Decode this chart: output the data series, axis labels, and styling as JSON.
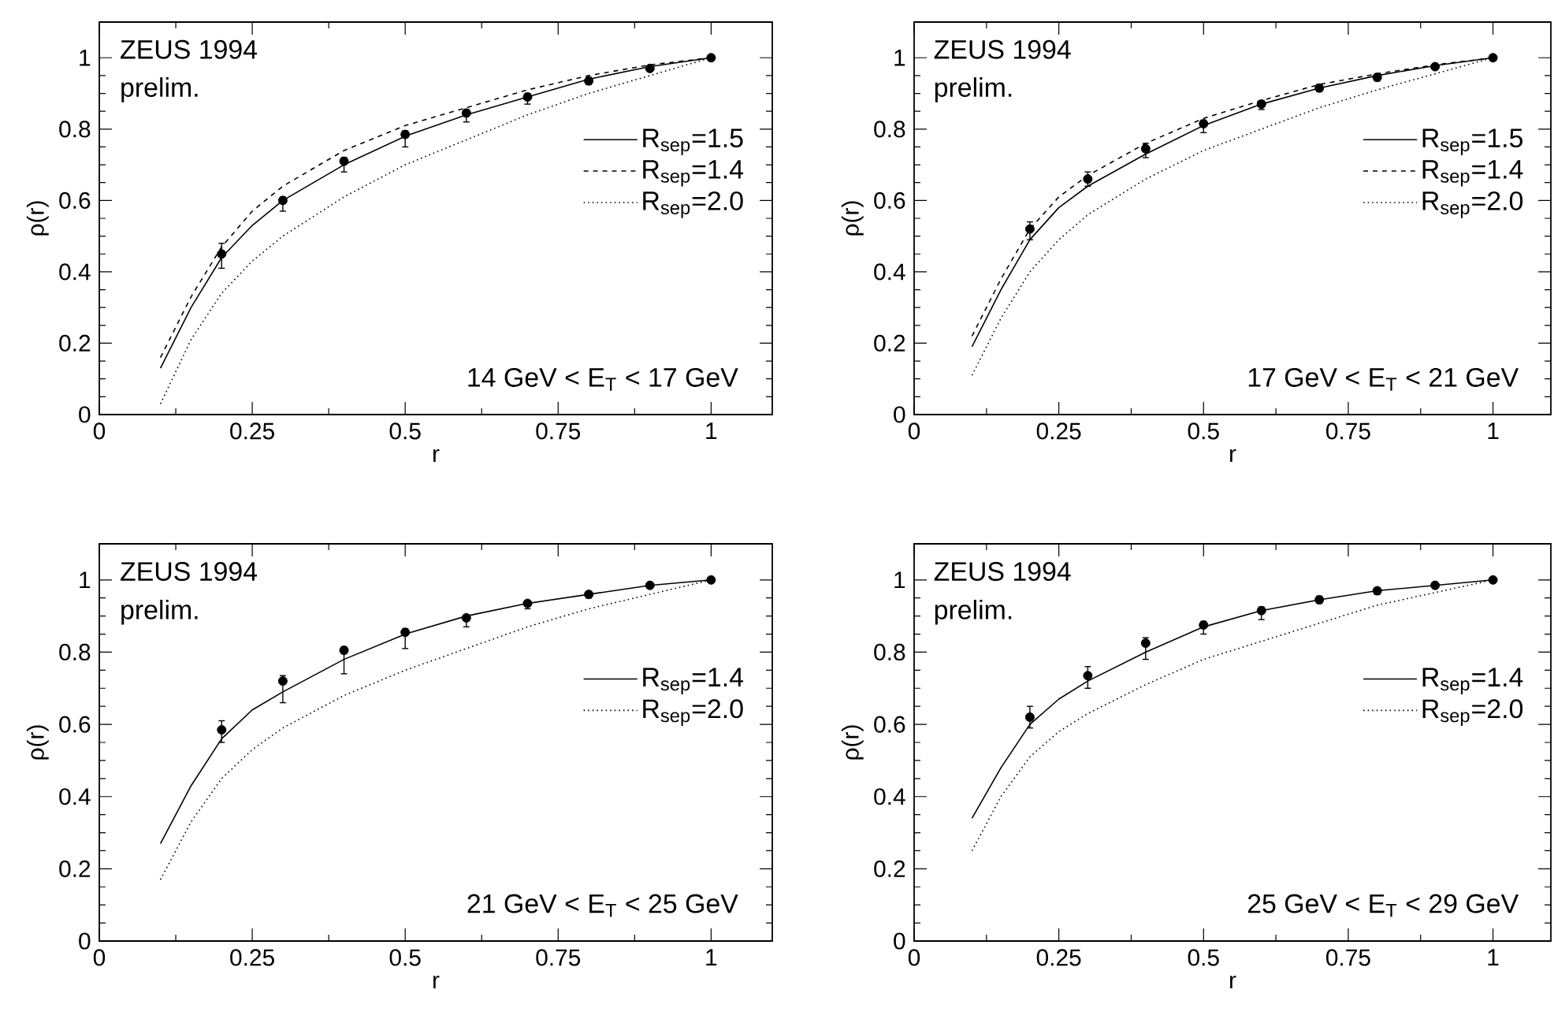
{
  "chart_data": [
    {
      "type": "line",
      "xlabel": "r",
      "ylabel": "ρ(r)",
      "xlim": [
        0,
        1.1
      ],
      "ylim": [
        0,
        1.1
      ],
      "xticks": [
        0,
        0.25,
        0.5,
        0.75,
        1
      ],
      "yticks": [
        0,
        0.2,
        0.4,
        0.6,
        0.8,
        1
      ],
      "legend": "right",
      "grid": false,
      "annotations": [
        "ZEUS 1994",
        "prelim.",
        "14 GeV < E$_{T}$ < 17 GeV"
      ],
      "series": [
        {
          "name": "R$_{sep}$=1.5",
          "color": "#000000",
          "line_style": "solid",
          "marker": "none",
          "x": [
            0.1,
            0.15,
            0.2,
            0.25,
            0.3,
            0.4,
            0.5,
            0.6,
            0.7,
            0.8,
            0.9,
            1
          ],
          "values": [
            0.13,
            0.3,
            0.44,
            0.53,
            0.6,
            0.7,
            0.78,
            0.84,
            0.89,
            0.94,
            0.975,
            1
          ]
        },
        {
          "name": "R$_{sep}$=1.4",
          "color": "#000000",
          "line_style": "dashed",
          "marker": "none",
          "x": [
            0.1,
            0.15,
            0.2,
            0.25,
            0.3,
            0.4,
            0.5,
            0.6,
            0.7,
            0.8,
            0.9,
            1
          ],
          "values": [
            0.16,
            0.33,
            0.47,
            0.57,
            0.64,
            0.74,
            0.81,
            0.86,
            0.91,
            0.95,
            0.98,
            1
          ]
        },
        {
          "name": "R$_{sep}$=2.0",
          "color": "#000000",
          "line_style": "dotted",
          "marker": "none",
          "x": [
            0.1,
            0.15,
            0.2,
            0.25,
            0.3,
            0.4,
            0.5,
            0.6,
            0.7,
            0.8,
            0.9,
            1
          ],
          "values": [
            0.03,
            0.21,
            0.34,
            0.43,
            0.5,
            0.61,
            0.7,
            0.77,
            0.84,
            0.9,
            0.95,
            1
          ]
        },
        {
          "type": "scatter",
          "color": "#000000",
          "marker": "circle",
          "x": [
            0.2,
            0.3,
            0.4,
            0.5,
            0.6,
            0.7,
            0.8,
            0.9,
            1
          ],
          "values": [
            0.45,
            0.6,
            0.71,
            0.785,
            0.845,
            0.89,
            0.935,
            0.97,
            1
          ],
          "errors": [
            [
              0.41,
              0.48
            ],
            [
              0.57,
              0.61
            ],
            [
              0.68,
              0.72
            ],
            [
              0.75,
              0.795
            ],
            [
              0.82,
              0.855
            ],
            [
              0.87,
              0.9
            ],
            [
              0.925,
              0.945
            ],
            [
              0.965,
              0.975
            ],
            null
          ]
        }
      ]
    },
    {
      "type": "line",
      "xlabel": "r",
      "ylabel": "ρ(r)",
      "xlim": [
        0,
        1.1
      ],
      "ylim": [
        0,
        1.1
      ],
      "xticks": [
        0,
        0.25,
        0.5,
        0.75,
        1
      ],
      "yticks": [
        0,
        0.2,
        0.4,
        0.6,
        0.8,
        1
      ],
      "legend": "right",
      "grid": false,
      "annotations": [
        "ZEUS 1994",
        "prelim.",
        "17 GeV < E$_{T}$ < 21 GeV"
      ],
      "series": [
        {
          "name": "R$_{sep}$=1.5",
          "color": "#000000",
          "line_style": "solid",
          "marker": "none",
          "x": [
            0.1,
            0.15,
            0.2,
            0.25,
            0.3,
            0.4,
            0.5,
            0.6,
            0.7,
            0.8,
            0.9,
            1
          ],
          "values": [
            0.19,
            0.35,
            0.49,
            0.58,
            0.64,
            0.73,
            0.81,
            0.87,
            0.915,
            0.95,
            0.978,
            1
          ]
        },
        {
          "name": "R$_{sep}$=1.4",
          "color": "#000000",
          "line_style": "dashed",
          "marker": "none",
          "x": [
            0.1,
            0.15,
            0.2,
            0.25,
            0.3,
            0.4,
            0.5,
            0.6,
            0.7,
            0.8,
            0.9,
            1
          ],
          "values": [
            0.22,
            0.38,
            0.52,
            0.61,
            0.67,
            0.76,
            0.83,
            0.88,
            0.925,
            0.955,
            0.98,
            1
          ]
        },
        {
          "name": "R$_{sep}$=2.0",
          "color": "#000000",
          "line_style": "dotted",
          "marker": "none",
          "x": [
            0.1,
            0.15,
            0.2,
            0.25,
            0.3,
            0.4,
            0.5,
            0.6,
            0.7,
            0.8,
            0.9,
            1
          ],
          "values": [
            0.11,
            0.27,
            0.4,
            0.49,
            0.56,
            0.66,
            0.74,
            0.8,
            0.86,
            0.91,
            0.955,
            1
          ]
        },
        {
          "type": "scatter",
          "color": "#000000",
          "marker": "circle",
          "x": [
            0.2,
            0.3,
            0.4,
            0.5,
            0.6,
            0.7,
            0.8,
            0.9,
            1
          ],
          "values": [
            0.52,
            0.66,
            0.745,
            0.815,
            0.87,
            0.915,
            0.945,
            0.975,
            1
          ],
          "errors": [
            [
              0.49,
              0.54
            ],
            [
              0.64,
              0.68
            ],
            [
              0.72,
              0.76
            ],
            [
              0.79,
              0.825
            ],
            [
              0.855,
              0.88
            ],
            [
              0.905,
              0.925
            ],
            [
              0.935,
              0.955
            ],
            [
              0.97,
              0.98
            ],
            null
          ]
        }
      ]
    },
    {
      "type": "line",
      "xlabel": "r",
      "ylabel": "ρ(r)",
      "xlim": [
        0,
        1.1
      ],
      "ylim": [
        0,
        1.1
      ],
      "xticks": [
        0,
        0.25,
        0.5,
        0.75,
        1
      ],
      "yticks": [
        0,
        0.2,
        0.4,
        0.6,
        0.8,
        1
      ],
      "legend": "right",
      "grid": false,
      "annotations": [
        "ZEUS 1994",
        "prelim.",
        "21 GeV < E$_{T}$ < 25 GeV"
      ],
      "series": [
        {
          "name": "R$_{sep}$=1.4",
          "color": "#000000",
          "line_style": "solid",
          "marker": "none",
          "x": [
            0.1,
            0.15,
            0.2,
            0.25,
            0.3,
            0.4,
            0.5,
            0.6,
            0.7,
            0.8,
            0.9,
            1
          ],
          "values": [
            0.27,
            0.43,
            0.56,
            0.64,
            0.69,
            0.78,
            0.85,
            0.9,
            0.935,
            0.96,
            0.985,
            1
          ]
        },
        {
          "name": "R$_{sep}$=2.0",
          "color": "#000000",
          "line_style": "dotted",
          "marker": "none",
          "x": [
            0.1,
            0.15,
            0.2,
            0.25,
            0.3,
            0.4,
            0.5,
            0.6,
            0.7,
            0.8,
            0.9,
            1
          ],
          "values": [
            0.17,
            0.33,
            0.45,
            0.53,
            0.59,
            0.68,
            0.75,
            0.81,
            0.87,
            0.92,
            0.96,
            1
          ]
        },
        {
          "type": "scatter",
          "color": "#000000",
          "marker": "circle",
          "x": [
            0.2,
            0.3,
            0.4,
            0.5,
            0.6,
            0.7,
            0.8,
            0.9,
            1
          ],
          "values": [
            0.585,
            0.72,
            0.805,
            0.855,
            0.895,
            0.935,
            0.96,
            0.985,
            1
          ],
          "errors": [
            [
              0.55,
              0.61
            ],
            [
              0.66,
              0.735
            ],
            [
              0.74,
              0.815
            ],
            [
              0.81,
              0.865
            ],
            [
              0.87,
              0.9
            ],
            [
              0.92,
              0.94
            ],
            [
              0.95,
              0.965
            ],
            [
              0.98,
              0.99
            ],
            null
          ]
        }
      ]
    },
    {
      "type": "line",
      "xlabel": "r",
      "ylabel": "ρ(r)",
      "xlim": [
        0,
        1.1
      ],
      "ylim": [
        0,
        1.1
      ],
      "xticks": [
        0,
        0.25,
        0.5,
        0.75,
        1
      ],
      "yticks": [
        0,
        0.2,
        0.4,
        0.6,
        0.8,
        1
      ],
      "legend": "right",
      "grid": false,
      "annotations": [
        "ZEUS 1994",
        "prelim.",
        "25 GeV < E$_{T}$ < 29 GeV"
      ],
      "series": [
        {
          "name": "R$_{sep}$=1.4",
          "color": "#000000",
          "line_style": "solid",
          "marker": "none",
          "x": [
            0.1,
            0.15,
            0.2,
            0.25,
            0.3,
            0.4,
            0.5,
            0.6,
            0.7,
            0.8,
            0.9,
            1
          ],
          "values": [
            0.34,
            0.48,
            0.6,
            0.67,
            0.72,
            0.8,
            0.87,
            0.915,
            0.945,
            0.97,
            0.985,
            1
          ]
        },
        {
          "name": "R$_{sep}$=2.0",
          "color": "#000000",
          "line_style": "dotted",
          "marker": "none",
          "x": [
            0.1,
            0.15,
            0.2,
            0.25,
            0.3,
            0.4,
            0.5,
            0.6,
            0.7,
            0.8,
            0.9,
            1
          ],
          "values": [
            0.25,
            0.4,
            0.51,
            0.58,
            0.63,
            0.71,
            0.78,
            0.83,
            0.88,
            0.93,
            0.965,
            1
          ]
        },
        {
          "type": "scatter",
          "color": "#000000",
          "marker": "circle",
          "x": [
            0.2,
            0.3,
            0.4,
            0.5,
            0.6,
            0.7,
            0.8,
            0.9,
            1
          ],
          "values": [
            0.62,
            0.735,
            0.825,
            0.875,
            0.915,
            0.945,
            0.97,
            0.985,
            1
          ],
          "errors": [
            [
              0.59,
              0.65
            ],
            [
              0.7,
              0.76
            ],
            [
              0.78,
              0.84
            ],
            [
              0.85,
              0.885
            ],
            [
              0.89,
              0.925
            ],
            [
              0.935,
              0.955
            ],
            [
              0.96,
              0.975
            ],
            [
              0.98,
              0.99
            ],
            null
          ]
        }
      ]
    }
  ]
}
